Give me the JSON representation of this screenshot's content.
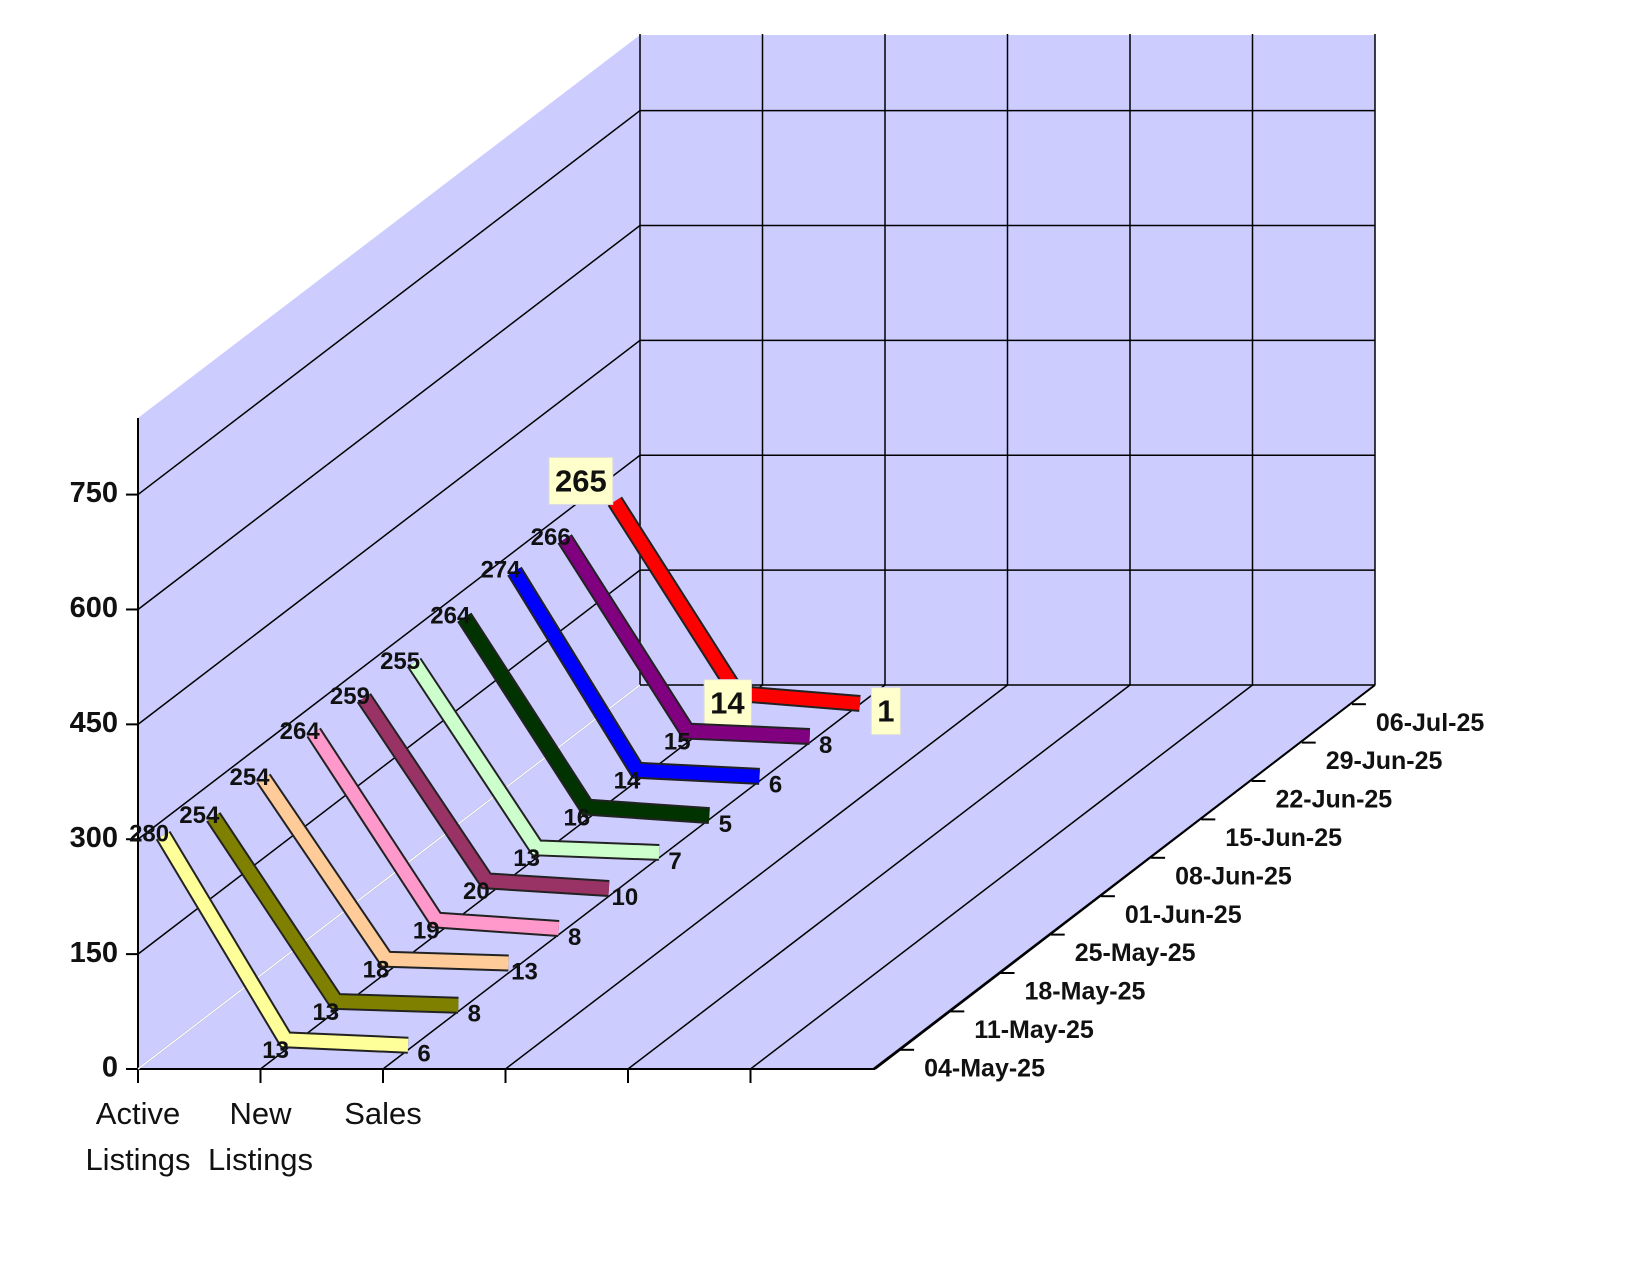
{
  "chart_data": {
    "type": "line3d",
    "categories": [
      "Active Listings",
      "New Listings",
      "Sales"
    ],
    "ylim": [
      0,
      850
    ],
    "yticks": [
      0,
      150,
      300,
      450,
      600,
      750
    ],
    "grid": true,
    "series": [
      {
        "name": "04-May-25",
        "color": "#ffff99",
        "values": [
          280,
          13,
          6
        ]
      },
      {
        "name": "11-May-25",
        "color": "#808000",
        "values": [
          254,
          13,
          8
        ]
      },
      {
        "name": "18-May-25",
        "color": "#ffcc99",
        "values": [
          254,
          18,
          13
        ]
      },
      {
        "name": "25-May-25",
        "color": "#ff99cc",
        "values": [
          264,
          19,
          8
        ]
      },
      {
        "name": "01-Jun-25",
        "color": "#993366",
        "values": [
          259,
          20,
          10
        ]
      },
      {
        "name": "08-Jun-25",
        "color": "#ccffcc",
        "values": [
          255,
          13,
          7
        ]
      },
      {
        "name": "15-Jun-25",
        "color": "#003300",
        "values": [
          264,
          16,
          5
        ]
      },
      {
        "name": "22-Jun-25",
        "color": "#0000ff",
        "values": [
          274,
          14,
          6
        ]
      },
      {
        "name": "29-Jun-25",
        "color": "#800080",
        "values": [
          266,
          15,
          8
        ]
      },
      {
        "name": "06-Jul-25",
        "color": "#ff0000",
        "values": [
          265,
          14,
          1
        ]
      }
    ]
  }
}
